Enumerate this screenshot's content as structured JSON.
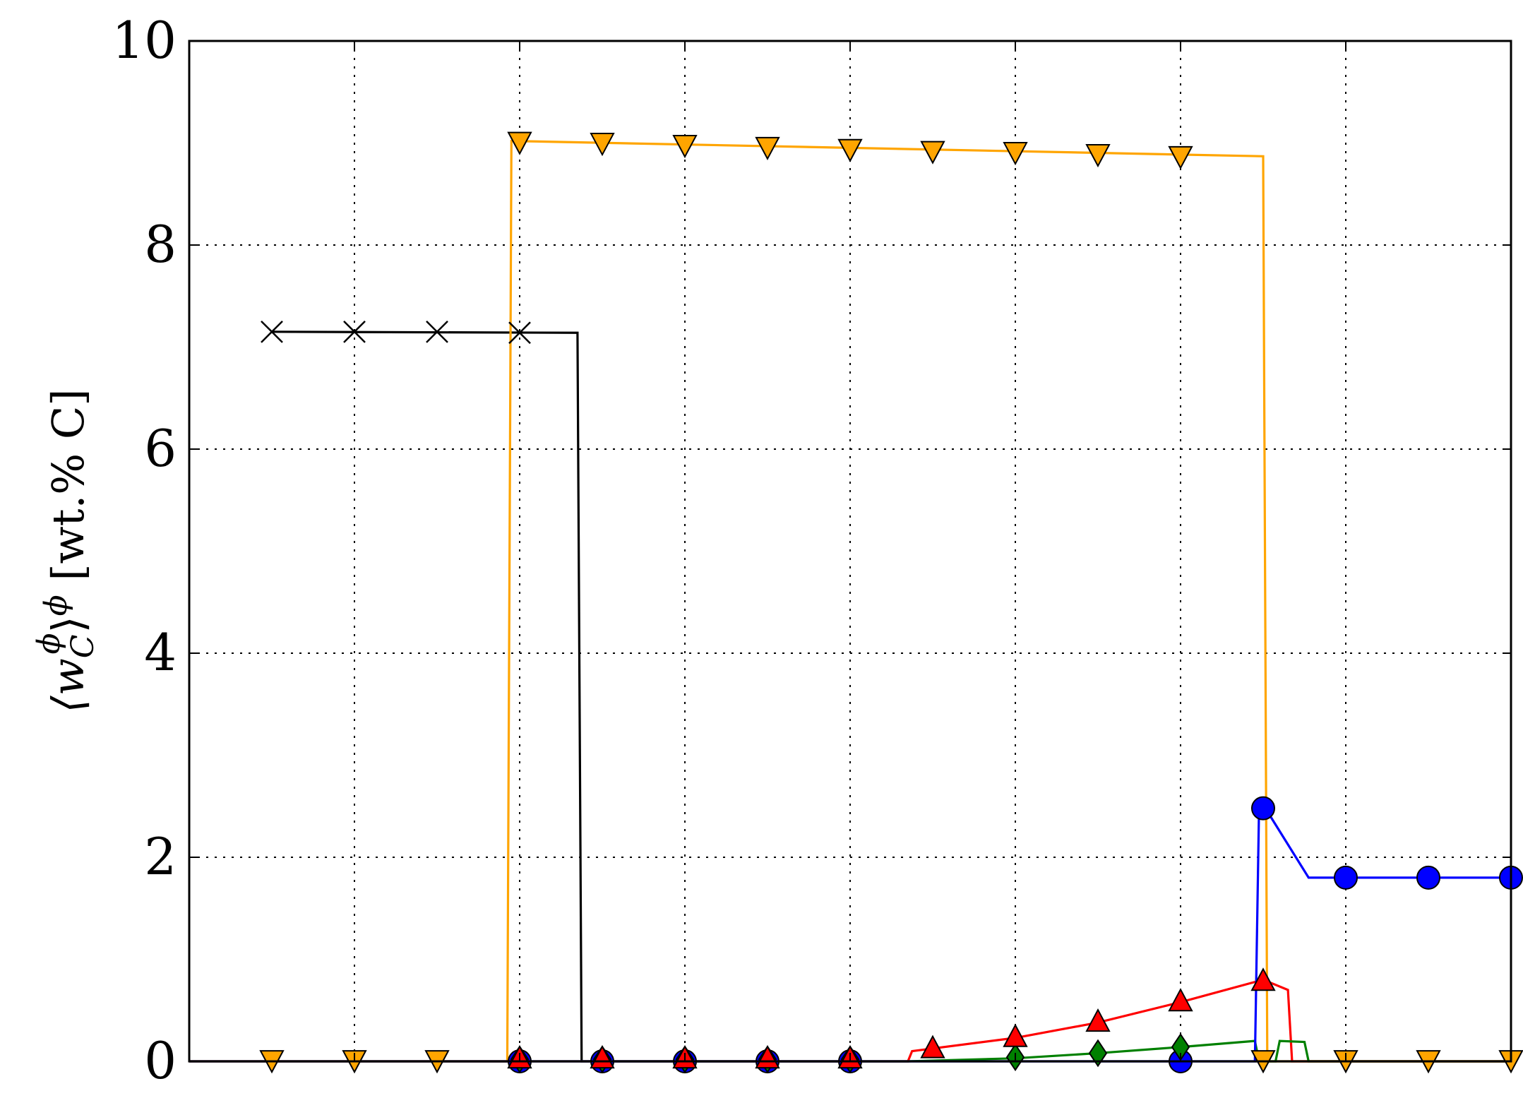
{
  "chart_data": {
    "type": "line",
    "title": "",
    "xlabel": "",
    "ylabel": "⟨w",
    "ylabel_sub": "C",
    "ylabel_sup": "ϕ",
    "ylabel_mid": "⟩",
    "ylabel_sup2": "ϕ",
    "ylabel_unit": " [wt.% C]",
    "xlim": [
      0,
      16
    ],
    "ylim": [
      0,
      10
    ],
    "yticks": [
      0,
      2,
      4,
      6,
      8,
      10
    ],
    "ytick_labels": [
      "0",
      "2",
      "4",
      "6",
      "8",
      "10"
    ],
    "xgrid": [
      2,
      4,
      6,
      8,
      10,
      12,
      14
    ],
    "grid": true,
    "series": [
      {
        "color": "#000000",
        "marker": "x",
        "line": [
          [
            1,
            7.15
          ],
          [
            4.7,
            7.14
          ],
          [
            4.75,
            0
          ],
          [
            16,
            0
          ]
        ],
        "markers": [
          [
            1,
            7.15
          ],
          [
            2,
            7.15
          ],
          [
            3,
            7.15
          ],
          [
            4,
            7.14
          ]
        ]
      },
      {
        "color": "#FFA500",
        "marker": "triangle-down",
        "line": [
          [
            0,
            0
          ],
          [
            3.85,
            0
          ],
          [
            3.9,
            9.02
          ],
          [
            13,
            8.87
          ],
          [
            13.05,
            0
          ],
          [
            16,
            0
          ]
        ],
        "markers": [
          [
            1,
            0.02
          ],
          [
            2,
            0.02
          ],
          [
            3,
            0.02
          ],
          [
            4,
            9.02
          ],
          [
            5,
            9.01
          ],
          [
            6,
            8.99
          ],
          [
            7,
            8.97
          ],
          [
            8,
            8.95
          ],
          [
            9,
            8.93
          ],
          [
            10,
            8.92
          ],
          [
            11,
            8.9
          ],
          [
            12,
            8.88
          ],
          [
            13,
            0.02
          ],
          [
            14,
            0.02
          ],
          [
            15,
            0.02
          ],
          [
            16,
            0.02
          ]
        ]
      },
      {
        "color": "#FF0000",
        "marker": "triangle-up",
        "line": [
          [
            0,
            0
          ],
          [
            8.7,
            0
          ],
          [
            8.75,
            0.1
          ],
          [
            10,
            0.23
          ],
          [
            11,
            0.38
          ],
          [
            12,
            0.58
          ],
          [
            13,
            0.8
          ],
          [
            13.3,
            0.7
          ],
          [
            13.35,
            0
          ],
          [
            16,
            0
          ]
        ],
        "markers": [
          [
            4,
            0.02
          ],
          [
            5,
            0.02
          ],
          [
            6,
            0.02
          ],
          [
            7,
            0.02
          ],
          [
            8,
            0.02
          ],
          [
            9,
            0.12
          ],
          [
            10,
            0.23
          ],
          [
            11,
            0.38
          ],
          [
            12,
            0.58
          ],
          [
            13,
            0.78
          ]
        ]
      },
      {
        "color": "#008000",
        "marker": "diamond",
        "line": [
          [
            0,
            0
          ],
          [
            8.7,
            0
          ],
          [
            10,
            0.03
          ],
          [
            11,
            0.08
          ],
          [
            12,
            0.14
          ],
          [
            12.9,
            0.2
          ],
          [
            12.95,
            0
          ],
          [
            13.15,
            0
          ],
          [
            13.2,
            0.2
          ],
          [
            13.5,
            0.19
          ],
          [
            13.55,
            0
          ],
          [
            16,
            0
          ]
        ],
        "markers": [
          [
            4,
            0.02
          ],
          [
            5,
            0.02
          ],
          [
            6,
            0.02
          ],
          [
            7,
            0.02
          ],
          [
            8,
            0.02
          ],
          [
            10,
            0.04
          ],
          [
            11,
            0.08
          ],
          [
            12,
            0.14
          ]
        ]
      },
      {
        "color": "#0000FF",
        "marker": "circle",
        "line": [
          [
            0,
            0
          ],
          [
            12.9,
            0
          ],
          [
            12.95,
            2.48
          ],
          [
            13.05,
            2.45
          ],
          [
            13.55,
            1.8
          ],
          [
            16,
            1.8
          ]
        ],
        "markers": [
          [
            4,
            0
          ],
          [
            5,
            0
          ],
          [
            6,
            0
          ],
          [
            7,
            0
          ],
          [
            8,
            0
          ],
          [
            12,
            0
          ],
          [
            13,
            2.48
          ],
          [
            14,
            1.8
          ],
          [
            15,
            1.8
          ],
          [
            16,
            1.8
          ]
        ]
      }
    ]
  }
}
